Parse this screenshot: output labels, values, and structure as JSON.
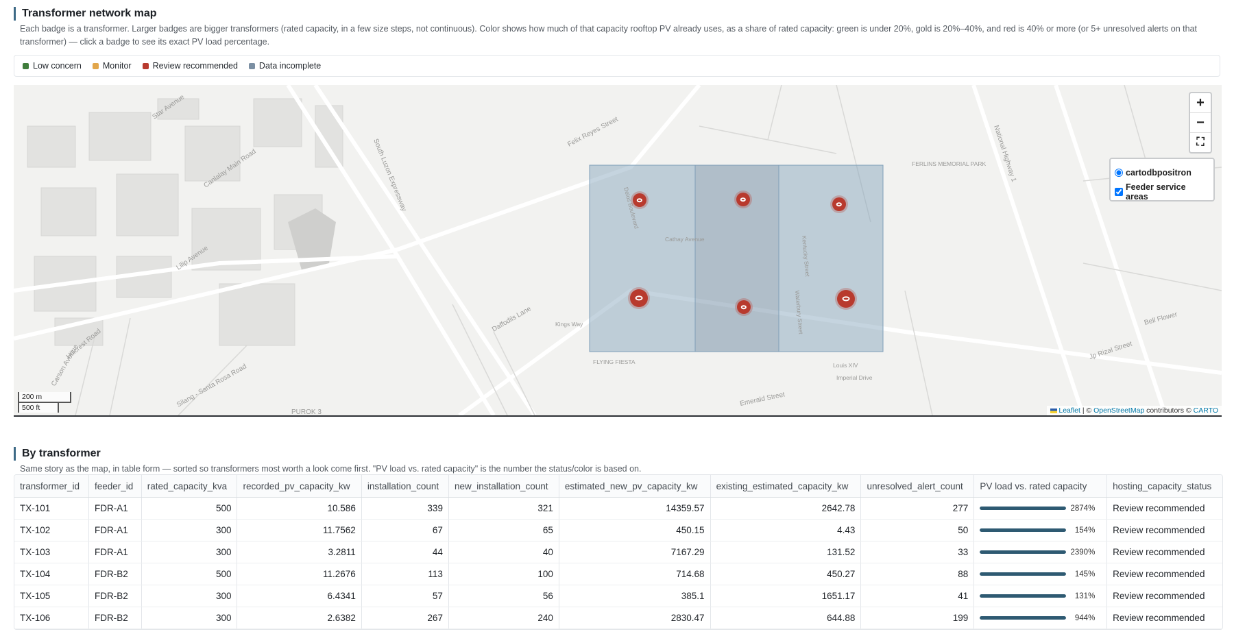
{
  "map_section": {
    "title": "Transformer network map",
    "description": "Each badge is a transformer. Larger badges are bigger transformers (rated capacity, in a few size steps, not continuous). Color shows how much of that capacity rooftop PV already uses, as a share of rated capacity: green is under 20%, gold is 20%–40%, and red is 40% or more (or 5+ unresolved alerts on that transformer) — click a badge to see its exact PV load percentage."
  },
  "legend": [
    {
      "label": "Low concern",
      "color": "#3f7d3c"
    },
    {
      "label": "Monitor",
      "color": "#e2a64b"
    },
    {
      "label": "Review recommended",
      "color": "#b83a2e"
    },
    {
      "label": "Data incomplete",
      "color": "#7b8fa3"
    }
  ],
  "map": {
    "zoom_in": "+",
    "zoom_out": "−",
    "fullscreen": "⛶",
    "layers": {
      "base": "cartodbpositron",
      "overlay": "Feeder service areas"
    },
    "scale": {
      "metric": "200 m",
      "imperial": "500 ft"
    },
    "attribution": {
      "leaflet": "Leaflet",
      "sep": " | © ",
      "osm": "OpenStreetMap",
      "contributors": " contributors © ",
      "carto": "CARTO"
    },
    "feeder_area_color": "#7f9fb8",
    "street_labels": [
      "Felix Reyes Street",
      "South Luzon Expressway",
      "National Highway 1",
      "FERLINS MEMORIAL PARK",
      "Star Avenue",
      "Canlalay Main Road",
      "Lilip Avenue",
      "Jp Rizal Street",
      "Silang - Santa Rosa Road",
      "FLYING FIESTA",
      "Emerald Street",
      "Bell Flower",
      "Hillcrest Road",
      "Daffodils Lane",
      "Kings Way",
      "Imperial Drive",
      "Louis XIV",
      "Carson Avenue",
      "PUROK 3",
      "Delos Boulevard",
      "Kentucky Street",
      "Cathay Avenue",
      "Waterbury Street"
    ],
    "transformers": [
      {
        "id": "TX-101",
        "status": "Review recommended"
      },
      {
        "id": "TX-102",
        "status": "Review recommended"
      },
      {
        "id": "TX-103",
        "status": "Review recommended"
      },
      {
        "id": "TX-104",
        "status": "Review recommended"
      },
      {
        "id": "TX-105",
        "status": "Review recommended"
      },
      {
        "id": "TX-106",
        "status": "Review recommended"
      }
    ]
  },
  "table_section": {
    "title": "By transformer",
    "description": "Same story as the map, in table form — sorted so transformers most worth a look come first. \"PV load vs. rated capacity\" is the number the status/color is based on."
  },
  "table": {
    "columns": [
      "transformer_id",
      "feeder_id",
      "rated_capacity_kva",
      "recorded_pv_capacity_kw",
      "installation_count",
      "new_installation_count",
      "estimated_new_pv_capacity_kw",
      "existing_estimated_capacity_kw",
      "unresolved_alert_count",
      "PV load vs. rated capacity",
      "hosting_capacity_status"
    ],
    "rows": [
      {
        "transformer_id": "TX-101",
        "feeder_id": "FDR-A1",
        "rated_capacity_kva": "500",
        "recorded_pv_capacity_kw": "10.586",
        "installation_count": "339",
        "new_installation_count": "321",
        "estimated_new_pv_capacity_kw": "14359.57",
        "existing_estimated_capacity_kw": "2642.78",
        "unresolved_alert_count": "277",
        "pv_load_label": "2874%",
        "pv_load_fraction": 1.0,
        "status": "Review recommended"
      },
      {
        "transformer_id": "TX-102",
        "feeder_id": "FDR-A1",
        "rated_capacity_kva": "300",
        "recorded_pv_capacity_kw": "11.7562",
        "installation_count": "67",
        "new_installation_count": "65",
        "estimated_new_pv_capacity_kw": "450.15",
        "existing_estimated_capacity_kw": "4.43",
        "unresolved_alert_count": "50",
        "pv_load_label": "154%",
        "pv_load_fraction": 1.0,
        "status": "Review recommended"
      },
      {
        "transformer_id": "TX-103",
        "feeder_id": "FDR-A1",
        "rated_capacity_kva": "300",
        "recorded_pv_capacity_kw": "3.2811",
        "installation_count": "44",
        "new_installation_count": "40",
        "estimated_new_pv_capacity_kw": "7167.29",
        "existing_estimated_capacity_kw": "131.52",
        "unresolved_alert_count": "33",
        "pv_load_label": "2390%",
        "pv_load_fraction": 1.0,
        "status": "Review recommended"
      },
      {
        "transformer_id": "TX-104",
        "feeder_id": "FDR-B2",
        "rated_capacity_kva": "500",
        "recorded_pv_capacity_kw": "11.2676",
        "installation_count": "113",
        "new_installation_count": "100",
        "estimated_new_pv_capacity_kw": "714.68",
        "existing_estimated_capacity_kw": "450.27",
        "unresolved_alert_count": "88",
        "pv_load_label": "145%",
        "pv_load_fraction": 1.0,
        "status": "Review recommended"
      },
      {
        "transformer_id": "TX-105",
        "feeder_id": "FDR-B2",
        "rated_capacity_kva": "300",
        "recorded_pv_capacity_kw": "6.4341",
        "installation_count": "57",
        "new_installation_count": "56",
        "estimated_new_pv_capacity_kw": "385.1",
        "existing_estimated_capacity_kw": "1651.17",
        "unresolved_alert_count": "41",
        "pv_load_label": "131%",
        "pv_load_fraction": 1.0,
        "status": "Review recommended"
      },
      {
        "transformer_id": "TX-106",
        "feeder_id": "FDR-B2",
        "rated_capacity_kva": "300",
        "recorded_pv_capacity_kw": "2.6382",
        "installation_count": "267",
        "new_installation_count": "240",
        "estimated_new_pv_capacity_kw": "2830.47",
        "existing_estimated_capacity_kw": "644.88",
        "unresolved_alert_count": "199",
        "pv_load_label": "944%",
        "pv_load_fraction": 1.0,
        "status": "Review recommended"
      }
    ]
  }
}
